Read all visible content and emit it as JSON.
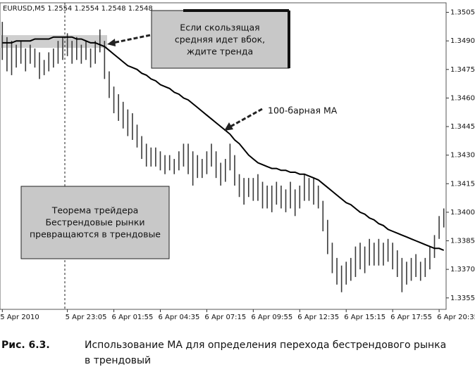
{
  "chart_data": {
    "type": "ohlc",
    "header": "EURUSD,M5  1.2554 1.2554 1.2548 1.2548",
    "categories": [
      "5 Apr 2010",
      null,
      null,
      null,
      null,
      null,
      null,
      null,
      null,
      null,
      null,
      null,
      null,
      null,
      "5 Apr 23:05",
      null,
      null,
      null,
      null,
      null,
      null,
      null,
      null,
      null,
      "6 Apr 01:55",
      null,
      null,
      null,
      null,
      null,
      null,
      null,
      null,
      null,
      "6 Apr 04:35",
      null,
      null,
      null,
      null,
      null,
      null,
      null,
      null,
      null,
      "6 Apr 07:15",
      null,
      null,
      null,
      null,
      null,
      null,
      null,
      null,
      null,
      "6 Apr 09:55",
      null,
      null,
      null,
      null,
      null,
      null,
      null,
      null,
      null,
      "6 Apr 12:35",
      null,
      null,
      null,
      null,
      null,
      null,
      null,
      null,
      null,
      "6 Apr 15:15",
      null,
      null,
      null,
      null,
      null,
      null,
      null,
      null,
      null,
      "6 Apr 17:55",
      null,
      null,
      null,
      null,
      null,
      null,
      null,
      null,
      null,
      "6 Apr 20:35",
      null
    ],
    "high": [
      1.35,
      1.3492,
      1.349,
      1.3488,
      1.349,
      1.3486,
      1.3488,
      1.3486,
      1.3484,
      1.348,
      1.3484,
      1.3486,
      1.349,
      1.3492,
      1.3494,
      1.349,
      1.3492,
      1.3488,
      1.349,
      1.3486,
      1.349,
      1.3496,
      1.349,
      1.3474,
      1.3466,
      1.3462,
      1.3458,
      1.3454,
      1.3452,
      1.3446,
      1.344,
      1.3436,
      1.3434,
      1.3434,
      1.3432,
      1.343,
      1.343,
      1.3428,
      1.3432,
      1.3436,
      1.3436,
      1.3432,
      1.343,
      1.3428,
      1.3432,
      1.3436,
      1.3432,
      1.3426,
      1.3428,
      1.3436,
      1.343,
      1.342,
      1.3418,
      1.3418,
      1.3418,
      1.342,
      1.3416,
      1.3414,
      1.3414,
      1.3416,
      1.3414,
      1.3412,
      1.3416,
      1.3412,
      1.3414,
      1.342,
      1.3418,
      1.3418,
      1.3414,
      1.3406,
      1.3396,
      1.3384,
      1.3376,
      1.3372,
      1.3374,
      1.3376,
      1.3382,
      1.3384,
      1.3382,
      1.3386,
      1.3384,
      1.3386,
      1.3384,
      1.3386,
      1.3384,
      1.338,
      1.3376,
      1.3374,
      1.3376,
      1.3378,
      1.3374,
      1.3376,
      1.3382,
      1.3388,
      1.3398,
      1.3402
    ],
    "low": [
      1.348,
      1.3474,
      1.3472,
      1.3476,
      1.3478,
      1.3474,
      1.3478,
      1.3476,
      1.347,
      1.3472,
      1.3474,
      1.3476,
      1.3478,
      1.348,
      1.3482,
      1.3478,
      1.348,
      1.3478,
      1.348,
      1.3476,
      1.3478,
      1.3484,
      1.347,
      1.346,
      1.3452,
      1.3448,
      1.3444,
      1.344,
      1.3438,
      1.3434,
      1.3428,
      1.3424,
      1.3424,
      1.3424,
      1.3422,
      1.342,
      1.3422,
      1.342,
      1.3422,
      1.3424,
      1.342,
      1.3414,
      1.3418,
      1.3418,
      1.342,
      1.3424,
      1.3418,
      1.3414,
      1.3416,
      1.3422,
      1.3414,
      1.3408,
      1.3404,
      1.3408,
      1.3406,
      1.3406,
      1.3402,
      1.3402,
      1.34,
      1.3404,
      1.3402,
      1.34,
      1.3402,
      1.3398,
      1.3402,
      1.3406,
      1.3406,
      1.3404,
      1.3402,
      1.339,
      1.3378,
      1.3368,
      1.3362,
      1.3358,
      1.3362,
      1.3364,
      1.3366,
      1.337,
      1.3368,
      1.3372,
      1.3372,
      1.3372,
      1.3372,
      1.3374,
      1.337,
      1.3366,
      1.3358,
      1.3362,
      1.3364,
      1.3366,
      1.3364,
      1.3366,
      1.337,
      1.3376,
      1.3386,
      1.3392
    ],
    "ma": [
      1.3489,
      1.3489,
      1.3489,
      1.349,
      1.349,
      1.349,
      1.349,
      1.3491,
      1.3491,
      1.3491,
      1.3491,
      1.3492,
      1.3492,
      1.3492,
      1.3492,
      1.3492,
      1.3491,
      1.3491,
      1.349,
      1.3489,
      1.3489,
      1.3488,
      1.3487,
      1.3485,
      1.3483,
      1.3481,
      1.3479,
      1.3477,
      1.3476,
      1.3475,
      1.3473,
      1.3472,
      1.347,
      1.3469,
      1.3467,
      1.3466,
      1.3465,
      1.3463,
      1.3462,
      1.346,
      1.3459,
      1.3457,
      1.3455,
      1.3453,
      1.3451,
      1.3449,
      1.3447,
      1.3445,
      1.3443,
      1.3441,
      1.3438,
      1.3436,
      1.3433,
      1.343,
      1.3428,
      1.3426,
      1.3425,
      1.3424,
      1.3423,
      1.3423,
      1.3422,
      1.3422,
      1.3421,
      1.3421,
      1.342,
      1.342,
      1.3419,
      1.3418,
      1.3417,
      1.3415,
      1.3413,
      1.3411,
      1.3409,
      1.3407,
      1.3405,
      1.3404,
      1.3402,
      1.34,
      1.3399,
      1.3397,
      1.3396,
      1.3394,
      1.3393,
      1.3391,
      1.339,
      1.3389,
      1.3388,
      1.3387,
      1.3386,
      1.3385,
      1.3384,
      1.3383,
      1.3382,
      1.3381,
      1.3381,
      1.338
    ],
    "bar_color": "#3a3a3a",
    "ma_color": "#000000",
    "ylim": [
      1.3349,
      1.351
    ],
    "yticks": [
      {
        "value": 1.3505,
        "label": "1.3505"
      },
      {
        "value": 1.349,
        "label": "1.3490"
      },
      {
        "value": 1.3475,
        "label": "1.3475"
      },
      {
        "value": 1.346,
        "label": "1.3460"
      },
      {
        "value": 1.3445,
        "label": "1.3445"
      },
      {
        "value": 1.343,
        "label": "1.3430"
      },
      {
        "value": 1.3415,
        "label": "1.3415"
      },
      {
        "value": 1.34,
        "label": "1.3400"
      },
      {
        "value": 1.3385,
        "label": "1.3385"
      },
      {
        "value": 1.337,
        "label": "1.3370"
      },
      {
        "value": 1.3355,
        "label": "1.3355"
      }
    ],
    "annotations": [
      "Если скользящая",
      "средняя идет вбок,",
      "ждите тренда",
      "100-барная МА",
      "Теорема трейдера",
      "Бестрендовые рынки",
      "превращаются в трендовые"
    ],
    "caption": {
      "number": "Рис. 6.3.",
      "line1": "Использование МА для определения перехода бестрендового рынка",
      "line2": "в трендовый"
    }
  }
}
